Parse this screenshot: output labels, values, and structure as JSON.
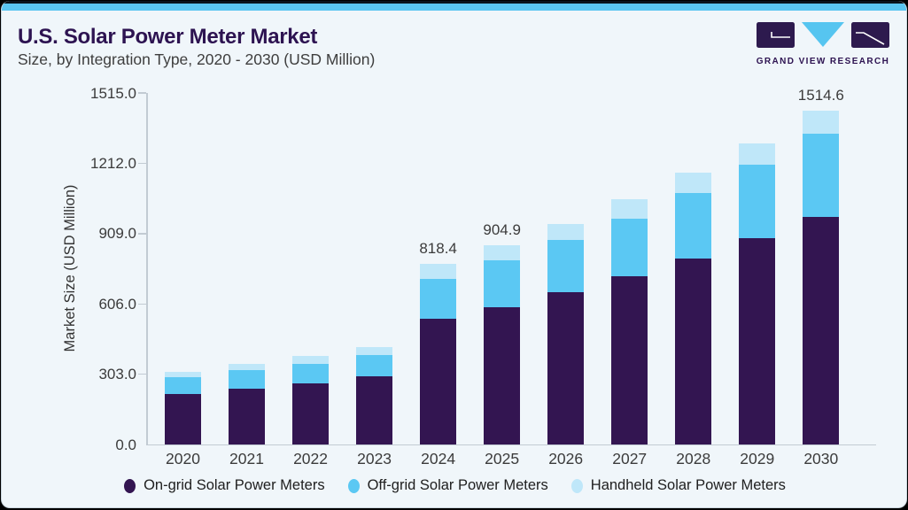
{
  "header": {
    "title": "U.S. Solar Power Meter Market",
    "subtitle": "Size, by Integration Type, 2020 - 2030 (USD Million)"
  },
  "logo": {
    "text": "GRAND VIEW RESEARCH",
    "icon": "gvr-logo-icon"
  },
  "colors": {
    "accent_top_bar": "#5ac5f0",
    "title_purple": "#2d1351",
    "card_background": "#f0f6fa",
    "axis_gray": "#c2cbd3",
    "on_grid": "#331551",
    "off_grid": "#5bc8f3",
    "handheld": "#bfe7f9"
  },
  "chart_data": {
    "type": "bar",
    "stacked": true,
    "title": "U.S. Solar Power Meter Market Size, by Integration Type, 2020 - 2030 (USD Million)",
    "categories": [
      "2020",
      "2021",
      "2022",
      "2023",
      "2024",
      "2025",
      "2026",
      "2027",
      "2028",
      "2029",
      "2030"
    ],
    "series": [
      {
        "name": "On-grid Solar Power Meters",
        "color": "#331551",
        "values": [
          230,
          252,
          279,
          308,
          568.4,
          623.4,
          690,
          764,
          844,
          937,
          1033.6
        ]
      },
      {
        "name": "Off-grid Solar Power Meters",
        "color": "#5bc8f3",
        "values": [
          74,
          87,
          87,
          98,
          183,
          210.3,
          237,
          260,
          295,
          333,
          378
        ]
      },
      {
        "name": "Handheld Solar Power Meters",
        "color": "#bfe7f9",
        "values": [
          24,
          26,
          36,
          36,
          67,
          71.2,
          75,
          88,
          94,
          94,
          103
        ]
      }
    ],
    "totals": [
      328,
      365,
      402,
      442,
      818.4,
      904.9,
      1002,
      1112,
      1233,
      1364,
      1514.6
    ],
    "bar_labels": [
      "",
      "",
      "",
      "",
      "818.4",
      "904.9",
      "",
      "",
      "",
      "",
      "1514.6"
    ],
    "ylabel": "Market Size (USD Million)",
    "xlabel": "",
    "ylim": [
      0,
      1515
    ],
    "yticks": [
      0,
      303,
      606,
      909,
      1212,
      1515
    ],
    "ytick_labels": [
      "0.0",
      "303.0",
      "606.0",
      "909.0",
      "1212.0",
      "1515.0"
    ],
    "grid": false,
    "legend_position": "bottom"
  }
}
